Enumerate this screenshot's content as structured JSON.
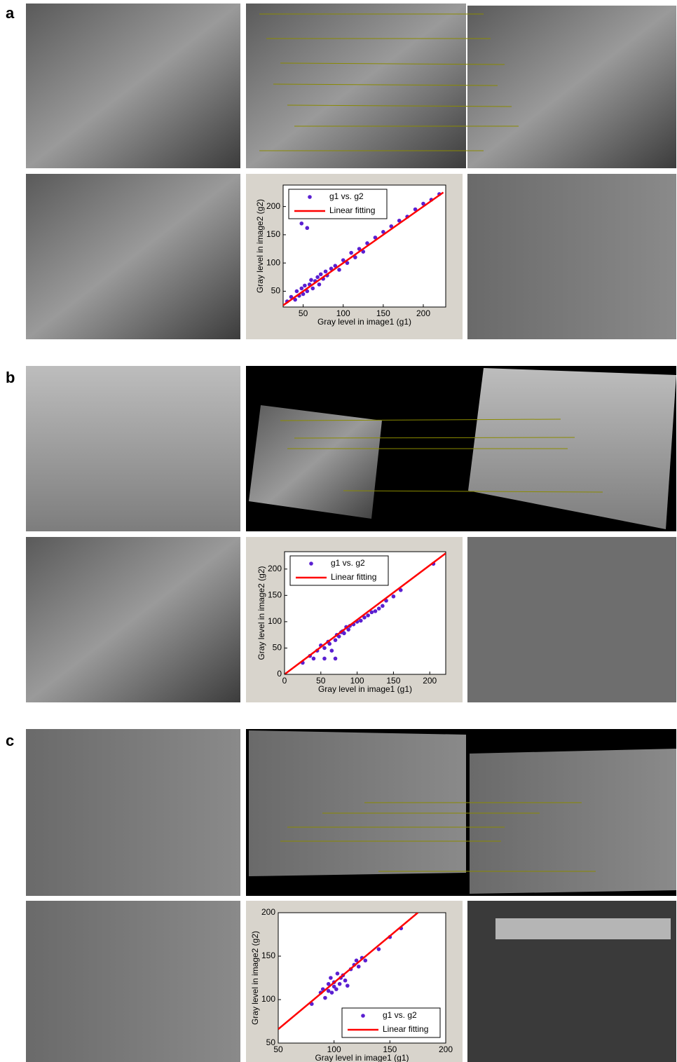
{
  "figure": {
    "panel_labels": [
      "a",
      "b",
      "c"
    ]
  },
  "chart_data": [
    {
      "type": "scatter",
      "xlabel": "Gray level in image1 (g1)",
      "ylabel": "Gray level in image2 (g2)",
      "xlim": [
        25,
        228
      ],
      "ylim": [
        22,
        238
      ],
      "xticks": [
        50,
        100,
        150,
        200
      ],
      "yticks": [
        50,
        100,
        150,
        200
      ],
      "legend": "upper left",
      "series": [
        {
          "name": "g1 vs. g2",
          "color": "#5a1fd1",
          "kind": "points",
          "x": [
            30,
            35,
            40,
            42,
            45,
            48,
            50,
            52,
            55,
            58,
            60,
            62,
            65,
            68,
            70,
            72,
            75,
            78,
            80,
            85,
            90,
            95,
            100,
            105,
            110,
            115,
            120,
            125,
            130,
            140,
            150,
            160,
            170,
            180,
            190,
            200,
            210,
            220,
            48,
            55
          ],
          "values": [
            32,
            40,
            35,
            50,
            42,
            55,
            45,
            60,
            50,
            62,
            70,
            55,
            68,
            75,
            62,
            80,
            72,
            85,
            78,
            90,
            95,
            88,
            105,
            100,
            118,
            110,
            125,
            120,
            135,
            145,
            155,
            165,
            175,
            182,
            195,
            205,
            212,
            222,
            170,
            162
          ]
        },
        {
          "name": "Linear fitting",
          "color": "#ff0000",
          "kind": "line",
          "x": [
            25,
            225
          ],
          "values": [
            25,
            225
          ]
        }
      ]
    },
    {
      "type": "scatter",
      "xlabel": "Gray level in image1 (g1)",
      "ylabel": "Gray level in image2 (g2)",
      "xlim": [
        0,
        222
      ],
      "ylim": [
        0,
        233
      ],
      "xticks": [
        0,
        50,
        100,
        150,
        200
      ],
      "yticks": [
        0,
        50,
        100,
        150,
        200
      ],
      "legend": "upper left",
      "series": [
        {
          "name": "g1 vs. g2",
          "color": "#5a1fd1",
          "kind": "points",
          "x": [
            25,
            35,
            40,
            45,
            50,
            55,
            60,
            62,
            65,
            70,
            72,
            75,
            78,
            80,
            82,
            85,
            88,
            90,
            95,
            100,
            105,
            110,
            115,
            120,
            125,
            130,
            135,
            140,
            150,
            160,
            205,
            55,
            70
          ],
          "values": [
            22,
            35,
            30,
            45,
            55,
            50,
            62,
            58,
            45,
            65,
            75,
            72,
            80,
            82,
            78,
            90,
            85,
            92,
            95,
            100,
            102,
            108,
            112,
            118,
            120,
            125,
            130,
            140,
            148,
            160,
            210,
            30,
            30
          ]
        },
        {
          "name": "Linear fitting",
          "color": "#ff0000",
          "kind": "line",
          "x": [
            0,
            222
          ],
          "values": [
            0,
            230
          ]
        }
      ]
    },
    {
      "type": "scatter",
      "xlabel": "Gray level in image1 (g1)",
      "ylabel": "Gray level in image2 (g2)",
      "xlim": [
        50,
        200
      ],
      "ylim": [
        50,
        200
      ],
      "xticks": [
        50,
        100,
        150,
        200
      ],
      "yticks": [
        50,
        100,
        150,
        200
      ],
      "legend": "lower right",
      "series": [
        {
          "name": "g1 vs. g2",
          "color": "#5a1fd1",
          "kind": "points",
          "x": [
            80,
            88,
            90,
            92,
            95,
            95,
            97,
            98,
            100,
            100,
            102,
            103,
            105,
            106,
            108,
            110,
            112,
            115,
            118,
            120,
            122,
            125,
            128,
            140,
            150,
            160
          ],
          "values": [
            95,
            108,
            112,
            102,
            118,
            110,
            125,
            108,
            115,
            120,
            112,
            130,
            118,
            125,
            128,
            122,
            116,
            135,
            140,
            145,
            138,
            148,
            145,
            158,
            172,
            182
          ]
        },
        {
          "name": "Linear fitting",
          "color": "#ff0000",
          "kind": "line",
          "x": [
            50,
            175
          ],
          "values": [
            66,
            200
          ]
        }
      ]
    }
  ]
}
